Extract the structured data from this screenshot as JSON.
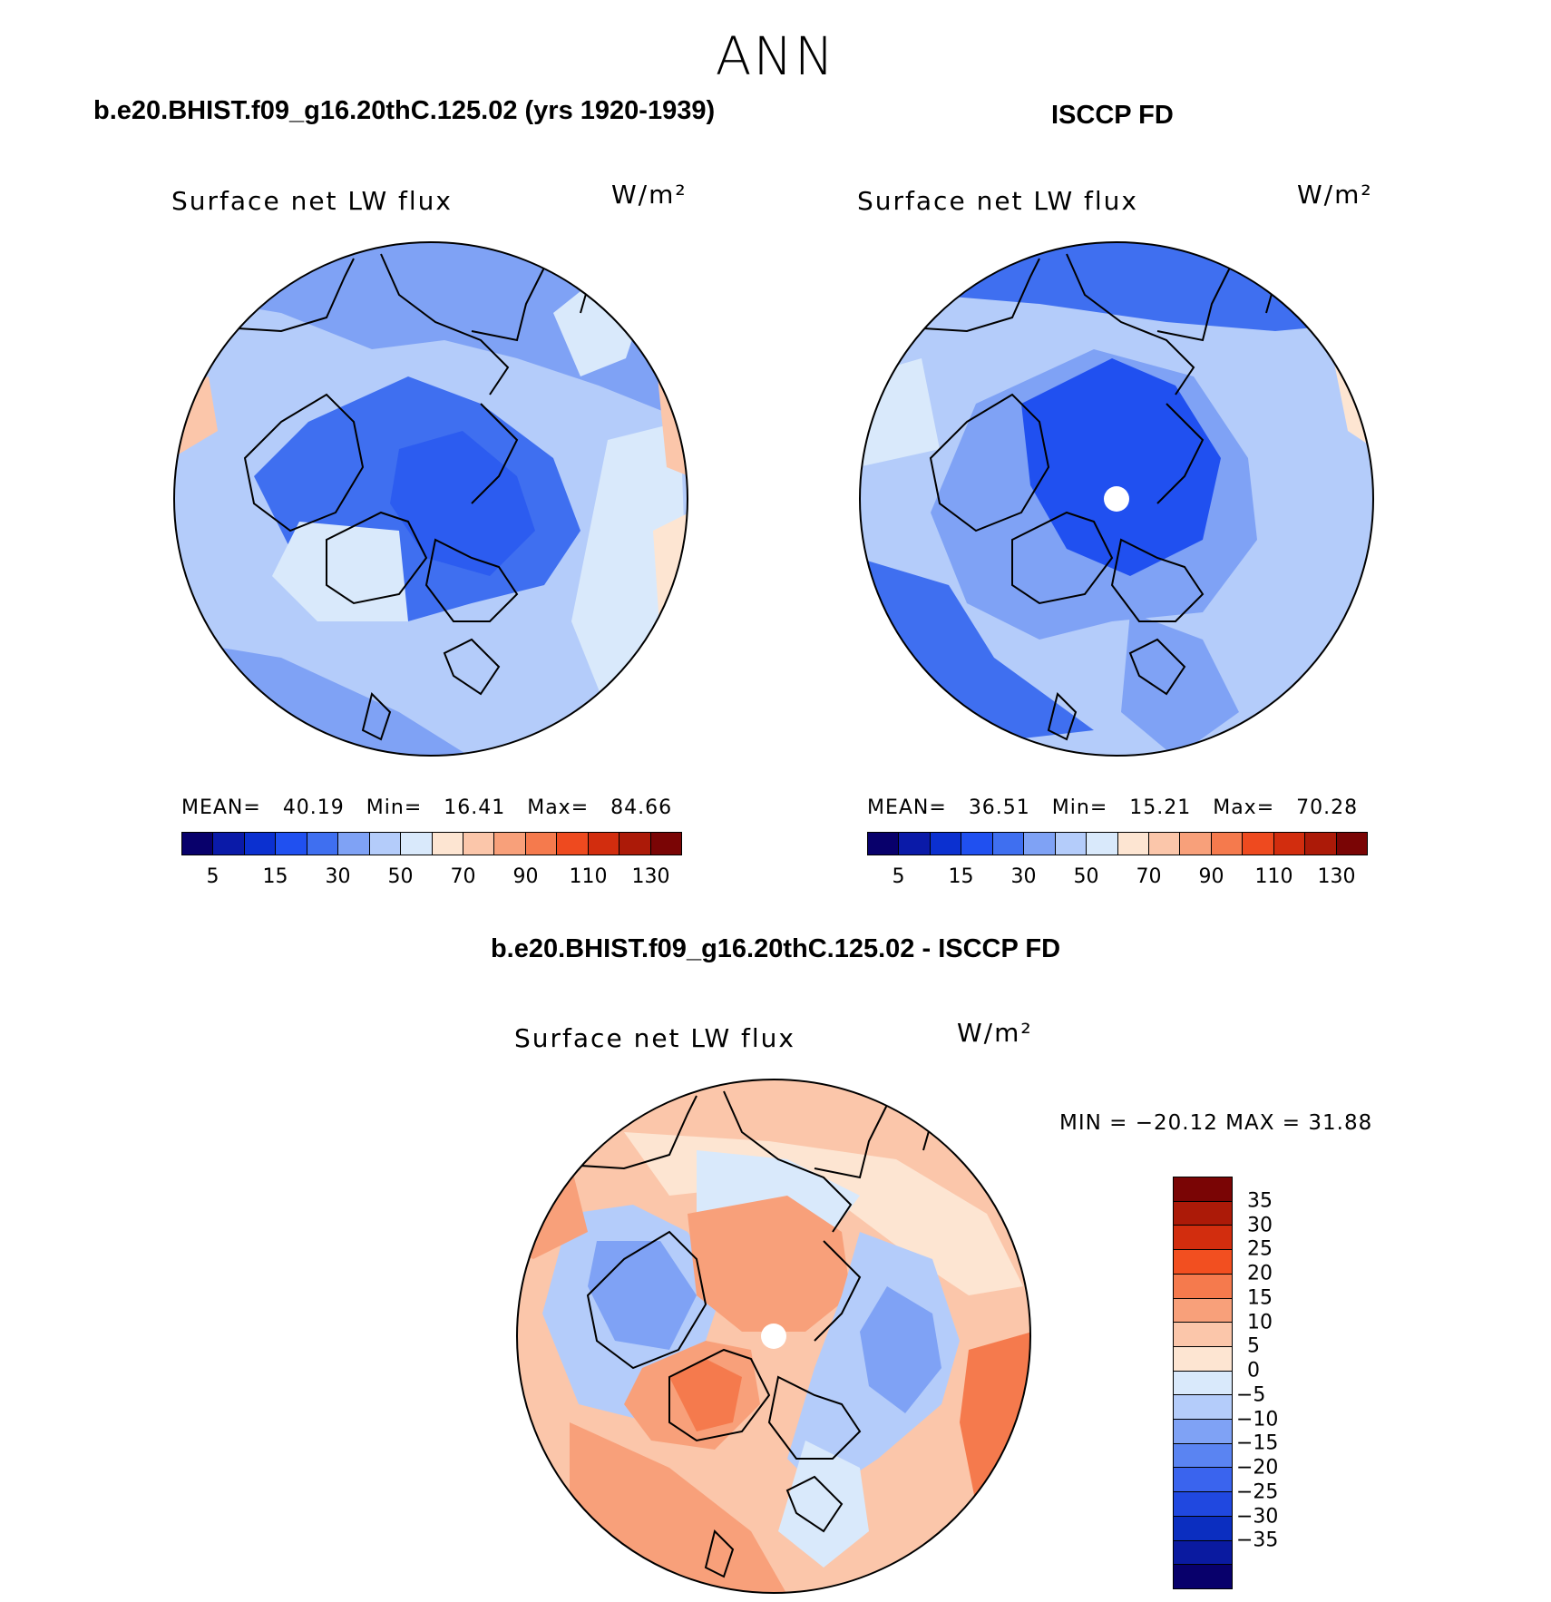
{
  "season": "ANN",
  "panels": [
    {
      "header": "b.e20.BHIST.f09_g16.20thC.125.02 (yrs 1920-1939)",
      "variable": "Surface net LW flux",
      "unit": "W/m²",
      "stats": {
        "mean_label": "MEAN=",
        "mean": "40.19",
        "min_label": "Min=",
        "min": "16.41",
        "max_label": "Max=",
        "max": "84.66"
      }
    },
    {
      "header": "ISCCP FD",
      "variable": "Surface net LW flux",
      "unit": "W/m²",
      "stats": {
        "mean_label": "MEAN=",
        "mean": "36.51",
        "min_label": "Min=",
        "min": "15.21",
        "max_label": "Max=",
        "max": "70.28"
      }
    },
    {
      "header": "b.e20.BHIST.f09_g16.20thC.125.02 - ISCCP FD",
      "variable": "Surface net LW flux",
      "unit": "W/m²",
      "stats_line": "MIN = −20.12 MAX =   31.88"
    }
  ],
  "abs_colorbar": {
    "colors": [
      "#08006b",
      "#0a1aa8",
      "#0b30d0",
      "#2050f0",
      "#3f6ff0",
      "#7fa2f5",
      "#b4ccfa",
      "#d9e9fb",
      "#fde5d2",
      "#fbc6aa",
      "#f8a07a",
      "#f57a4d",
      "#ee4a1f",
      "#d22d0e",
      "#ac1a08",
      "#7a0505"
    ],
    "ticks": [
      "5",
      "15",
      "30",
      "50",
      "70",
      "90",
      "110",
      "130"
    ]
  },
  "diff_colorbar": {
    "colors": [
      "#7a0505",
      "#ac1a08",
      "#d22d0e",
      "#f24f20",
      "#f57a4d",
      "#f8a07a",
      "#fbc6aa",
      "#fde5d2",
      "#d9e9fb",
      "#b4ccfa",
      "#7fa2f5",
      "#5a84f2",
      "#3a64ee",
      "#2048e0",
      "#0b2ec0",
      "#0a1aa0",
      "#08006b"
    ],
    "ticks": [
      "35",
      "30",
      "25",
      "20",
      "15",
      "10",
      "5",
      "0",
      "−5",
      "−10",
      "−15",
      "−20",
      "−25",
      "−30",
      "−35"
    ]
  },
  "map_colors": {
    "ocean_low": "#b4ccfa",
    "mid": "#7fa2f5",
    "deep": "#3f6ff0",
    "deeper": "#2050f0",
    "light": "#d9e9fb",
    "warm": "#fbc6aa",
    "warm2": "#f8a07a",
    "warm3": "#f57a4d",
    "pale_warm": "#fde5d2",
    "coast": "#000000"
  }
}
